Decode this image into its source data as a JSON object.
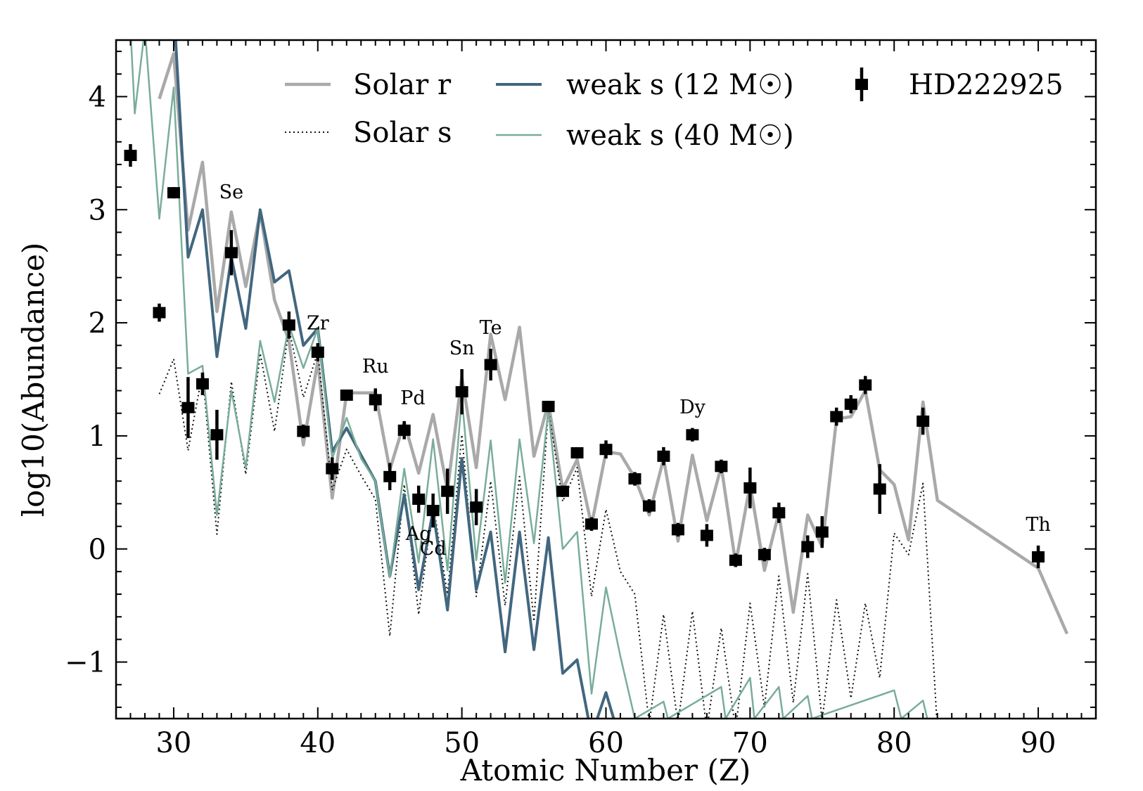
{
  "chart_data": {
    "type": "line",
    "title": "",
    "xlabel": "Atomic Number (Z)",
    "ylabel": "log10(Abundance)",
    "xlim": [
      26,
      94
    ],
    "ylim": [
      -1.5,
      4.5
    ],
    "xticks": [
      30,
      40,
      50,
      60,
      70,
      80,
      90
    ],
    "xtick_labels": [
      "30",
      "40",
      "50",
      "60",
      "70",
      "80",
      "90"
    ],
    "yticks": [
      -1,
      0,
      1,
      2,
      3,
      4
    ],
    "ytick_labels": [
      "−1",
      "0",
      "1",
      "2",
      "3",
      "4"
    ],
    "grid": false,
    "legend_position": "top",
    "legend": [
      {
        "key": "solar_r",
        "label": "Solar r"
      },
      {
        "key": "solar_s",
        "label": "Solar s"
      },
      {
        "key": "weak12",
        "label": "weak s (12 M☉)"
      },
      {
        "key": "weak40",
        "label": "weak s (40 M☉)"
      },
      {
        "key": "hd",
        "label": "HD222925"
      }
    ],
    "colors": {
      "solar_r": "#a9a9a9",
      "solar_s": "#111111",
      "weak12": "#42677f",
      "weak40": "#79ad9a",
      "hd": "#000000"
    },
    "series": [
      {
        "key": "solar_r",
        "name": "Solar r",
        "points": [
          [
            29,
            3.98
          ],
          [
            30,
            4.38
          ],
          [
            31,
            2.82
          ],
          [
            32,
            3.42
          ],
          [
            33,
            2.1
          ],
          [
            34,
            2.98
          ],
          [
            35,
            2.32
          ],
          [
            36,
            2.98
          ],
          [
            37,
            2.2
          ],
          [
            38,
            1.84
          ],
          [
            39,
            0.92
          ],
          [
            40,
            1.66
          ],
          [
            41,
            0.45
          ],
          [
            42,
            1.38
          ],
          [
            43,
            1.38
          ],
          [
            44,
            1.38
          ],
          [
            45,
            0.7
          ],
          [
            46,
            1.12
          ],
          [
            47,
            0.67
          ],
          [
            48,
            1.19
          ],
          [
            49,
            0.52
          ],
          [
            50,
            1.52
          ],
          [
            51,
            0.72
          ],
          [
            52,
            1.9
          ],
          [
            53,
            1.32
          ],
          [
            54,
            1.96
          ],
          [
            55,
            0.82
          ],
          [
            56,
            1.29
          ],
          [
            57,
            0.53
          ],
          [
            58,
            0.79
          ],
          [
            59,
            0.21
          ],
          [
            60,
            0.86
          ],
          [
            61,
            0.84
          ],
          [
            62,
            0.63
          ],
          [
            63,
            0.3
          ],
          [
            64,
            0.8
          ],
          [
            65,
            0.07
          ],
          [
            66,
            0.83
          ],
          [
            67,
            0.25
          ],
          [
            68,
            0.73
          ],
          [
            69,
            -0.13
          ],
          [
            70,
            0.57
          ],
          [
            71,
            -0.19
          ],
          [
            72,
            0.32
          ],
          [
            73,
            -0.56
          ],
          [
            74,
            0.3
          ],
          [
            75,
            0.02
          ],
          [
            76,
            1.15
          ],
          [
            77,
            1.17
          ],
          [
            78,
            1.4
          ],
          [
            79,
            0.7
          ],
          [
            80,
            0.57
          ],
          [
            81,
            0.08
          ],
          [
            82,
            1.3
          ],
          [
            83,
            0.43
          ],
          [
            90,
            -0.17
          ],
          [
            92,
            -0.75
          ]
        ]
      },
      {
        "key": "solar_s",
        "name": "Solar s",
        "points": [
          [
            29,
            1.37
          ],
          [
            30,
            1.68
          ],
          [
            31,
            0.87
          ],
          [
            32,
            1.56
          ],
          [
            33,
            0.13
          ],
          [
            34,
            1.48
          ],
          [
            35,
            0.66
          ],
          [
            36,
            1.73
          ],
          [
            37,
            1.04
          ],
          [
            38,
            1.95
          ],
          [
            39,
            1.34
          ],
          [
            40,
            1.74
          ],
          [
            41,
            0.52
          ],
          [
            42,
            0.88
          ],
          [
            43,
            0.65
          ],
          [
            44,
            0.44
          ],
          [
            45,
            -0.77
          ],
          [
            46,
            0.57
          ],
          [
            47,
            -0.58
          ],
          [
            48,
            0.4
          ],
          [
            49,
            -0.4
          ],
          [
            50,
            1.01
          ],
          [
            51,
            -0.42
          ],
          [
            52,
            0.6
          ],
          [
            53,
            -0.5
          ],
          [
            54,
            0.64
          ],
          [
            55,
            -0.64
          ],
          [
            56,
            1.24
          ],
          [
            57,
            0.42
          ],
          [
            58,
            0.72
          ],
          [
            59,
            -0.42
          ],
          [
            60,
            0.35
          ],
          [
            61,
            -0.2
          ],
          [
            62,
            -0.4
          ],
          [
            63,
            -1.55
          ],
          [
            64,
            -0.58
          ],
          [
            65,
            -1.55
          ],
          [
            66,
            -0.55
          ],
          [
            67,
            -1.6
          ],
          [
            68,
            -0.7
          ],
          [
            69,
            -1.6
          ],
          [
            70,
            -0.48
          ],
          [
            71,
            -1.4
          ],
          [
            72,
            -0.24
          ],
          [
            73,
            -1.36
          ],
          [
            74,
            -0.22
          ],
          [
            75,
            -1.52
          ],
          [
            76,
            -0.45
          ],
          [
            77,
            -1.32
          ],
          [
            78,
            -0.48
          ],
          [
            79,
            -1.14
          ],
          [
            80,
            0.14
          ],
          [
            81,
            -0.05
          ],
          [
            82,
            0.58
          ],
          [
            83,
            -1.6
          ]
        ]
      },
      {
        "key": "weak12",
        "name": "weak s (12 M☉)",
        "points": [
          [
            30,
            4.8
          ],
          [
            31,
            2.58
          ],
          [
            32,
            3.0
          ],
          [
            33,
            1.7
          ],
          [
            34,
            2.58
          ],
          [
            35,
            1.95
          ],
          [
            36,
            3.0
          ],
          [
            37,
            2.36
          ],
          [
            38,
            2.46
          ],
          [
            39,
            1.8
          ],
          [
            40,
            1.95
          ],
          [
            41,
            0.86
          ],
          [
            42,
            1.07
          ],
          [
            43,
            0.83
          ],
          [
            44,
            0.6
          ],
          [
            45,
            -0.24
          ],
          [
            46,
            0.48
          ],
          [
            47,
            -0.36
          ],
          [
            48,
            0.34
          ],
          [
            49,
            -0.54
          ],
          [
            50,
            0.8
          ],
          [
            51,
            -0.36
          ],
          [
            52,
            0.15
          ],
          [
            53,
            -0.91
          ],
          [
            54,
            0.15
          ],
          [
            55,
            -0.89
          ],
          [
            56,
            0.1
          ],
          [
            57,
            -1.1
          ],
          [
            58,
            -0.98
          ],
          [
            59,
            -1.65
          ],
          [
            60,
            -1.27
          ],
          [
            61,
            -1.7
          ]
        ]
      },
      {
        "key": "weak40",
        "name": "weak s (40 M☉)",
        "points": [
          [
            27,
            4.6
          ],
          [
            27.3,
            3.85
          ],
          [
            28,
            4.6
          ],
          [
            29,
            2.92
          ],
          [
            30,
            4.08
          ],
          [
            31,
            1.55
          ],
          [
            32,
            1.62
          ],
          [
            33,
            0.3
          ],
          [
            34,
            1.4
          ],
          [
            35,
            0.72
          ],
          [
            36,
            1.84
          ],
          [
            37,
            1.3
          ],
          [
            38,
            1.98
          ],
          [
            39,
            1.6
          ],
          [
            40,
            1.95
          ],
          [
            41,
            0.8
          ],
          [
            42,
            1.16
          ],
          [
            43,
            0.8
          ],
          [
            44,
            0.6
          ],
          [
            45,
            -0.25
          ],
          [
            46,
            0.71
          ],
          [
            47,
            -0.12
          ],
          [
            48,
            0.97
          ],
          [
            49,
            -0.19
          ],
          [
            50,
            1.34
          ],
          [
            51,
            -0.1
          ],
          [
            52,
            0.96
          ],
          [
            53,
            -0.3
          ],
          [
            54,
            0.97
          ],
          [
            55,
            0.05
          ],
          [
            56,
            1.23
          ],
          [
            57,
            0.0
          ],
          [
            58,
            0.15
          ],
          [
            59,
            -1.28
          ],
          [
            60,
            -0.34
          ],
          [
            61,
            -0.95
          ],
          [
            62,
            -1.5
          ],
          [
            64,
            -1.35
          ],
          [
            64.3,
            -1.5
          ],
          [
            68,
            -1.22
          ],
          [
            68.3,
            -1.5
          ],
          [
            70,
            -1.14
          ],
          [
            70.3,
            -1.5
          ],
          [
            72,
            -1.22
          ],
          [
            72.3,
            -1.5
          ],
          [
            74,
            -1.3
          ],
          [
            74.3,
            -1.5
          ],
          [
            80,
            -1.25
          ],
          [
            80.5,
            -1.5
          ],
          [
            82,
            -1.34
          ],
          [
            82.3,
            -1.5
          ]
        ]
      }
    ],
    "observations": {
      "key": "hd",
      "name": "HD222925",
      "points": [
        {
          "x": 27,
          "y": 3.48,
          "err": 0.1
        },
        {
          "x": 29,
          "y": 2.09,
          "err": 0.08
        },
        {
          "x": 30,
          "y": 3.15,
          "err": 0.05
        },
        {
          "x": 31,
          "y": 1.25,
          "err": 0.27
        },
        {
          "x": 32,
          "y": 1.46,
          "err": 0.1
        },
        {
          "x": 33,
          "y": 1.01,
          "err": 0.22
        },
        {
          "x": 34,
          "y": 2.62,
          "err": 0.2
        },
        {
          "x": 38,
          "y": 1.98,
          "err": 0.12
        },
        {
          "x": 39,
          "y": 1.04,
          "err": 0.06
        },
        {
          "x": 40,
          "y": 1.74,
          "err": 0.08
        },
        {
          "x": 41,
          "y": 0.71,
          "err": 0.1
        },
        {
          "x": 42,
          "y": 1.36,
          "err": 0.05
        },
        {
          "x": 44,
          "y": 1.32,
          "err": 0.1
        },
        {
          "x": 45,
          "y": 0.64,
          "err": 0.12
        },
        {
          "x": 46,
          "y": 1.05,
          "err": 0.08
        },
        {
          "x": 47,
          "y": 0.44,
          "err": 0.12
        },
        {
          "x": 48,
          "y": 0.34,
          "err": 0.15
        },
        {
          "x": 49,
          "y": 0.51,
          "err": 0.2
        },
        {
          "x": 50,
          "y": 1.39,
          "err": 0.2
        },
        {
          "x": 51,
          "y": 0.37,
          "err": 0.16
        },
        {
          "x": 52,
          "y": 1.63,
          "err": 0.14
        },
        {
          "x": 56,
          "y": 1.26,
          "err": 0.05
        },
        {
          "x": 57,
          "y": 0.51,
          "err": 0.05
        },
        {
          "x": 58,
          "y": 0.85,
          "err": 0.05
        },
        {
          "x": 59,
          "y": 0.22,
          "err": 0.06
        },
        {
          "x": 60,
          "y": 0.88,
          "err": 0.08
        },
        {
          "x": 62,
          "y": 0.62,
          "err": 0.06
        },
        {
          "x": 63,
          "y": 0.38,
          "err": 0.06
        },
        {
          "x": 64,
          "y": 0.82,
          "err": 0.08
        },
        {
          "x": 65,
          "y": 0.17,
          "err": 0.06
        },
        {
          "x": 66,
          "y": 1.01,
          "err": 0.06
        },
        {
          "x": 67,
          "y": 0.12,
          "err": 0.1
        },
        {
          "x": 68,
          "y": 0.73,
          "err": 0.06
        },
        {
          "x": 69,
          "y": -0.1,
          "err": 0.06
        },
        {
          "x": 70,
          "y": 0.54,
          "err": 0.18
        },
        {
          "x": 71,
          "y": -0.05,
          "err": 0.06
        },
        {
          "x": 72,
          "y": 0.32,
          "err": 0.09
        },
        {
          "x": 74,
          "y": 0.02,
          "err": 0.1
        },
        {
          "x": 75,
          "y": 0.15,
          "err": 0.14
        },
        {
          "x": 76,
          "y": 1.17,
          "err": 0.08
        },
        {
          "x": 77,
          "y": 1.28,
          "err": 0.08
        },
        {
          "x": 78,
          "y": 1.45,
          "err": 0.08
        },
        {
          "x": 79,
          "y": 0.53,
          "err": 0.22
        },
        {
          "x": 82,
          "y": 1.13,
          "err": 0.12
        },
        {
          "x": 90,
          "y": -0.07,
          "err": 0.1
        }
      ]
    },
    "annotations": [
      {
        "text": "Se",
        "x": 34,
        "y": 3.1
      },
      {
        "text": "Zr",
        "x": 40,
        "y": 1.94
      },
      {
        "text": "Ru",
        "x": 44,
        "y": 1.56
      },
      {
        "text": "Pd",
        "x": 46.6,
        "y": 1.28
      },
      {
        "text": "Ag",
        "x": 47,
        "y": 0.08
      },
      {
        "text": "Cd",
        "x": 48,
        "y": -0.05
      },
      {
        "text": "Sn",
        "x": 50,
        "y": 1.72
      },
      {
        "text": "Te",
        "x": 52,
        "y": 1.9
      },
      {
        "text": "Dy",
        "x": 66,
        "y": 1.2
      },
      {
        "text": "Th",
        "x": 90,
        "y": 0.16
      }
    ]
  }
}
